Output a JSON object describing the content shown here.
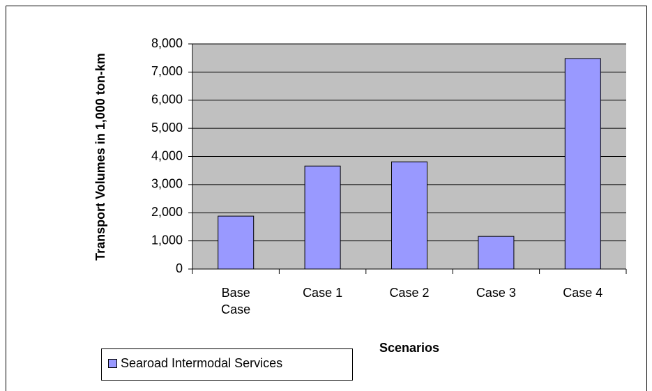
{
  "chart_data": {
    "type": "bar",
    "categories": [
      "Base Case",
      "Case 1",
      "Case 2",
      "Case 3",
      "Case 4"
    ],
    "series": [
      {
        "name": "Searoad Intermodal Services",
        "color": "#9999ff",
        "values": [
          1880,
          3660,
          3810,
          1160,
          7480
        ]
      }
    ],
    "y_label": "Transport Volumes in 1,000 ton-km",
    "x_label": "Scenarios",
    "ylim": [
      0,
      8000
    ],
    "yticks": [
      0,
      {
        "value": 1000,
        "label": "1,000"
      },
      {
        "value": 2000,
        "label": "2,000"
      },
      {
        "value": 3000,
        "label": "3,000"
      },
      {
        "value": 4000,
        "label": "4,000"
      },
      {
        "value": 5000,
        "label": "5,000"
      },
      {
        "value": 6000,
        "label": "6,000"
      },
      {
        "value": 7000,
        "label": "7,000"
      },
      {
        "value": 8000,
        "label": "8,000"
      }
    ],
    "grid": true,
    "plot_background": "#c0c0c0",
    "legend": "bottom-left"
  }
}
